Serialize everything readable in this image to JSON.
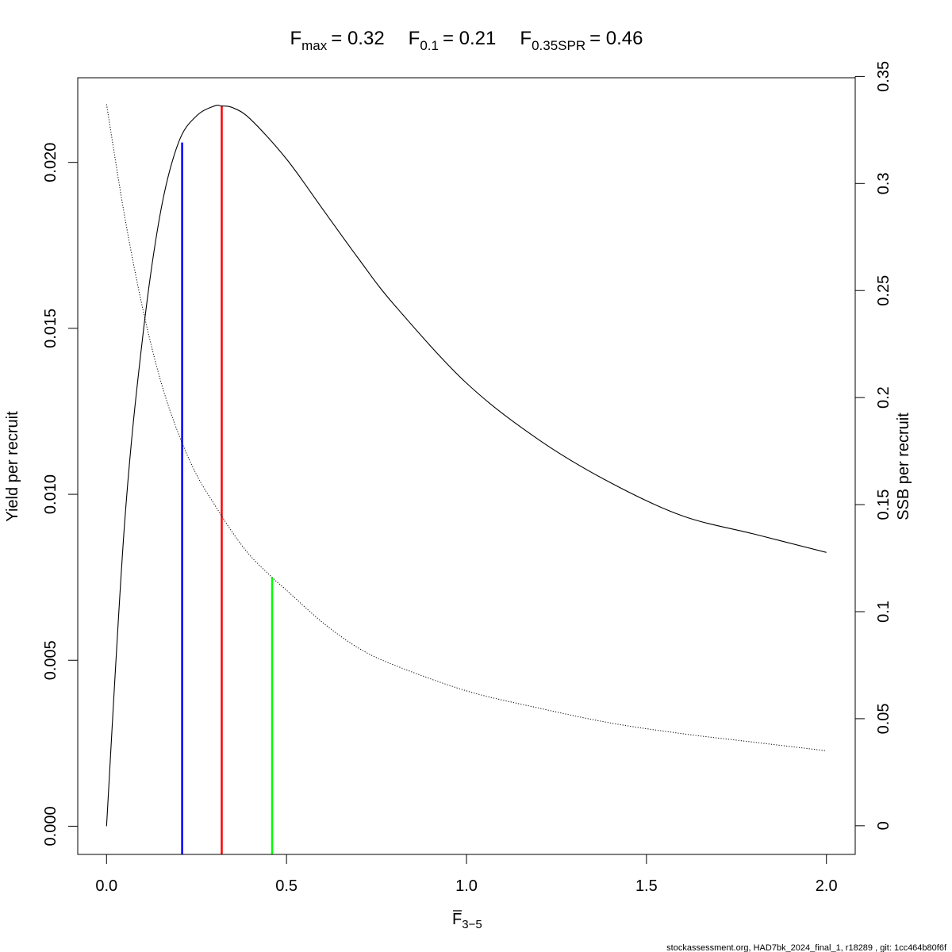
{
  "chart_data": {
    "type": "line",
    "title": {
      "fmax_sym": "F",
      "fmax_sub": "max",
      "fmax_val": "= 0.32",
      "f01_sym": "F",
      "f01_sub": "0.1",
      "f01_val": "= 0.21",
      "fspr_sym": "F",
      "fspr_sub": "0.35SPR",
      "fspr_val": "= 0.46"
    },
    "xlabel": {
      "base": "F",
      "sub": "3−5"
    },
    "ylabel_left": "Yield per recruit",
    "ylabel_right": "SSB per recruit",
    "xlim": [
      -0.08,
      2.08
    ],
    "ylim_left": [
      -0.00085,
      0.02255
    ],
    "ylim_right": [
      -0.0134,
      0.3494
    ],
    "x_ticks": [
      0.0,
      0.5,
      1.0,
      1.5,
      2.0
    ],
    "x_tick_labels": [
      "0.0",
      "0.5",
      "1.0",
      "1.5",
      "2.0"
    ],
    "y_left_ticks": [
      0.0,
      0.005,
      0.01,
      0.015,
      0.02
    ],
    "y_left_tick_labels": [
      "0.000",
      "0.005",
      "0.010",
      "0.015",
      "0.020"
    ],
    "y_right_ticks": [
      0,
      0.05,
      0.1,
      0.15,
      0.2,
      0.25,
      0.3,
      0.35
    ],
    "y_right_tick_labels": [
      "0",
      "0.05",
      "0.1",
      "0.15",
      "0.2",
      "0.25",
      "0.3",
      "0.35"
    ],
    "grid": false,
    "series": [
      {
        "axis": "left",
        "style": "solid",
        "color": "#000000",
        "x": [
          0,
          0.05,
          0.1,
          0.15,
          0.2,
          0.25,
          0.3,
          0.32,
          0.35,
          0.4,
          0.5,
          0.6,
          0.7,
          0.8,
          1.0,
          1.2,
          1.4,
          1.6,
          1.8,
          2.0
        ],
        "y": [
          0,
          0.0091,
          0.0147,
          0.0185,
          0.0206,
          0.0214,
          0.0217,
          0.0217,
          0.02165,
          0.0213,
          0.0201,
          0.0186,
          0.0171,
          0.0157,
          0.01335,
          0.01165,
          0.01035,
          0.00935,
          0.0088,
          0.00825
        ]
      },
      {
        "axis": "right",
        "style": "dotted",
        "color": "#000000",
        "x": [
          0,
          0.05,
          0.1,
          0.15,
          0.2,
          0.25,
          0.3,
          0.35,
          0.4,
          0.46,
          0.5,
          0.6,
          0.7,
          0.8,
          1.0,
          1.2,
          1.4,
          1.6,
          1.8,
          2.0
        ],
        "y": [
          0.337,
          0.285,
          0.242,
          0.208,
          0.183,
          0.164,
          0.15,
          0.137,
          0.126,
          0.116,
          0.11,
          0.095,
          0.083,
          0.075,
          0.063,
          0.055,
          0.048,
          0.043,
          0.039,
          0.035
        ]
      }
    ],
    "reference_lines": [
      {
        "x": 0.21,
        "y_top": 0.0206,
        "axis": "left",
        "color": "#0000ff"
      },
      {
        "x": 0.32,
        "y_top": 0.0217,
        "axis": "left",
        "color": "#ff0000"
      },
      {
        "x": 0.46,
        "y_top": 0.116,
        "axis": "right",
        "color": "#00ff00"
      }
    ]
  },
  "footer": "stockassessment.org, HAD7bk_2024_final_1, r18289 , git: 1cc464b80f6f"
}
